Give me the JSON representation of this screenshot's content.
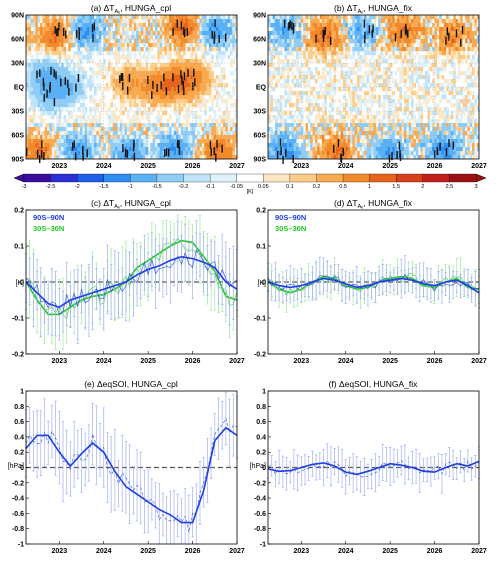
{
  "colorbar": {
    "levels": [
      "-3",
      "-2.5",
      "-2",
      "-1.5",
      "-1",
      "-0.5",
      "-0.2",
      "-0.1",
      "-0.05",
      "0.05",
      "0.1",
      "0.2",
      "0.5",
      "1",
      "1.5",
      "2",
      "2.5",
      "3"
    ],
    "colors": [
      "#3b0f9e",
      "#2b30d6",
      "#1f5fe8",
      "#2e8ef0",
      "#5ab0f5",
      "#8fcdf7",
      "#bfe3f8",
      "#dff1fb",
      "#ffffff",
      "#fde7c4",
      "#fccc88",
      "#f9a94f",
      "#f28a2b",
      "#e8641c",
      "#d8401a",
      "#c22019",
      "#9c1214"
    ],
    "unit": "[K]"
  },
  "chart_data": [
    {
      "type": "heatmap",
      "panel": "a",
      "title": "(a) ΔT_{Aₑ}, HUNGA_cpl",
      "x_tick_labels": [
        "2023",
        "2024",
        "2025",
        "2026",
        "2027"
      ],
      "y_tick_labels": [
        "90S",
        "60S",
        "30S",
        "EQ",
        "30N",
        "60N",
        "90N"
      ],
      "xlim": [
        2022.25,
        2027.0
      ],
      "ylim": [
        -90,
        90
      ],
      "features": [
        {
          "x": 2022.7,
          "lat": 15,
          "value": -0.6
        },
        {
          "x": 2022.8,
          "lat": -10,
          "value": -0.5
        },
        {
          "x": 2023.2,
          "lat": 0,
          "value": -0.5
        },
        {
          "x": 2024.6,
          "lat": 5,
          "value": 0.5
        },
        {
          "x": 2025.2,
          "lat": 0,
          "value": 0.6
        },
        {
          "x": 2025.6,
          "lat": 5,
          "value": 0.9
        },
        {
          "x": 2026.0,
          "lat": 10,
          "value": 0.7
        },
        {
          "x": 2022.9,
          "lat": 65,
          "value": 1.0
        },
        {
          "x": 2023.6,
          "lat": 70,
          "value": -1.0
        },
        {
          "x": 2025.8,
          "lat": 75,
          "value": 1.2
        },
        {
          "x": 2026.5,
          "lat": 70,
          "value": -1.0
        },
        {
          "x": 2022.5,
          "lat": -80,
          "value": 1.0
        },
        {
          "x": 2023.4,
          "lat": -80,
          "value": -1.0
        },
        {
          "x": 2024.6,
          "lat": -82,
          "value": -1.0
        },
        {
          "x": 2025.6,
          "lat": -78,
          "value": -1.0
        },
        {
          "x": 2026.6,
          "lat": -80,
          "value": 1.0
        }
      ]
    },
    {
      "type": "heatmap",
      "panel": "b",
      "title": "(b) ΔT_{Aₑ}, HUNGA_fix",
      "x_tick_labels": [
        "2023",
        "2024",
        "2025",
        "2026",
        "2027"
      ],
      "y_tick_labels": [
        "90S",
        "60S",
        "30S",
        "EQ",
        "30N",
        "60N",
        "90N"
      ],
      "xlim": [
        2022.25,
        2027.0
      ],
      "ylim": [
        -90,
        90
      ],
      "features": [
        {
          "x": 2022.6,
          "lat": 70,
          "value": -0.8
        },
        {
          "x": 2023.5,
          "lat": 65,
          "value": 1.0
        },
        {
          "x": 2024.4,
          "lat": 70,
          "value": -0.8
        },
        {
          "x": 2025.3,
          "lat": 70,
          "value": 1.0
        },
        {
          "x": 2026.4,
          "lat": 65,
          "value": 0.8
        },
        {
          "x": 2022.6,
          "lat": -80,
          "value": -1.2
        },
        {
          "x": 2023.8,
          "lat": -80,
          "value": 1.0
        },
        {
          "x": 2025.0,
          "lat": -82,
          "value": -1.0
        },
        {
          "x": 2026.2,
          "lat": -80,
          "value": -1.2
        }
      ]
    },
    {
      "type": "line",
      "panel": "c",
      "title": "(c) ΔT_{Aₑ}, HUNGA_cpl",
      "ylabel": "[K]",
      "x_tick_labels": [
        "2023",
        "2024",
        "2025",
        "2026",
        "2027"
      ],
      "y_tick_labels": [
        "-0.2",
        "-0.1",
        "0",
        "0.1",
        "0.2"
      ],
      "xlim": [
        2022.25,
        2027.0
      ],
      "ylim": [
        -0.2,
        0.2
      ],
      "x": [
        2022.25,
        2022.5,
        2022.75,
        2023.0,
        2023.25,
        2023.5,
        2023.75,
        2024.0,
        2024.25,
        2024.5,
        2024.75,
        2025.0,
        2025.25,
        2025.5,
        2025.75,
        2026.0,
        2026.25,
        2026.5,
        2026.75,
        2027.0
      ],
      "series": [
        {
          "name": "90S–90N",
          "color": "#1f3fe0",
          "values": [
            0.0,
            -0.03,
            -0.06,
            -0.07,
            -0.05,
            -0.04,
            -0.03,
            -0.02,
            -0.01,
            0.0,
            0.02,
            0.035,
            0.045,
            0.06,
            0.07,
            0.065,
            0.055,
            0.04,
            0.0,
            -0.02
          ]
        },
        {
          "name": "30S–30N",
          "color": "#1fc81f",
          "values": [
            0.0,
            -0.05,
            -0.09,
            -0.09,
            -0.07,
            -0.05,
            -0.04,
            -0.035,
            -0.02,
            0.0,
            0.04,
            0.06,
            0.08,
            0.1,
            0.115,
            0.11,
            0.07,
            0.03,
            -0.04,
            -0.05
          ]
        }
      ],
      "legend_placement": "top-left"
    },
    {
      "type": "line",
      "panel": "d",
      "title": "(d) ΔT_{Aₑ}, HUNGA_fix",
      "ylabel": "[K]",
      "x_tick_labels": [
        "2023",
        "2024",
        "2025",
        "2026",
        "2027"
      ],
      "y_tick_labels": [
        "-0.2",
        "-0.1",
        "0",
        "0.1",
        "0.2"
      ],
      "xlim": [
        2022.25,
        2027.0
      ],
      "ylim": [
        -0.2,
        0.2
      ],
      "x": [
        2022.25,
        2022.5,
        2022.75,
        2023.0,
        2023.25,
        2023.5,
        2023.75,
        2024.0,
        2024.25,
        2024.5,
        2024.75,
        2025.0,
        2025.25,
        2025.5,
        2025.75,
        2026.0,
        2026.25,
        2026.5,
        2026.75,
        2027.0
      ],
      "series": [
        {
          "name": "90S–90N",
          "color": "#1f3fe0",
          "values": [
            0.0,
            -0.01,
            -0.015,
            -0.01,
            0.0,
            0.01,
            0.005,
            -0.005,
            -0.015,
            -0.01,
            0.0,
            0.005,
            0.01,
            0.005,
            -0.005,
            -0.01,
            0.0,
            0.005,
            -0.01,
            -0.03
          ]
        },
        {
          "name": "30S–30N",
          "color": "#1fc81f",
          "values": [
            0.0,
            -0.02,
            -0.03,
            -0.02,
            0.0,
            0.015,
            0.01,
            -0.01,
            -0.02,
            -0.015,
            0.0,
            0.01,
            0.015,
            0.01,
            -0.01,
            -0.015,
            0.0,
            0.01,
            -0.015,
            -0.02
          ]
        }
      ],
      "legend_placement": "top-left"
    },
    {
      "type": "line",
      "panel": "e",
      "title": "(e) ΔeqSOI, HUNGA_cpl",
      "ylabel": "[hPa]",
      "x_tick_labels": [
        "2023",
        "2024",
        "2025",
        "2026",
        "2027"
      ],
      "y_tick_labels": [
        "-1",
        "-0.8",
        "-0.6",
        "-0.4",
        "-0.2",
        "0",
        "0.2",
        "0.4",
        "0.6",
        "0.8",
        "1"
      ],
      "xlim": [
        2022.25,
        2027.0
      ],
      "ylim": [
        -1,
        1
      ],
      "x": [
        2022.25,
        2022.5,
        2022.75,
        2023.0,
        2023.25,
        2023.5,
        2023.75,
        2024.0,
        2024.25,
        2024.5,
        2024.75,
        2025.0,
        2025.25,
        2025.5,
        2025.75,
        2026.0,
        2026.25,
        2026.5,
        2026.75,
        2027.0
      ],
      "series": [
        {
          "name": "",
          "color": "#1f3fe0",
          "values": [
            0.25,
            0.42,
            0.42,
            0.2,
            0.02,
            0.18,
            0.32,
            0.2,
            -0.05,
            -0.25,
            -0.35,
            -0.45,
            -0.55,
            -0.62,
            -0.72,
            -0.72,
            -0.3,
            0.35,
            0.52,
            0.42
          ]
        }
      ]
    },
    {
      "type": "line",
      "panel": "f",
      "title": "(f) ΔeqSOI, HUNGA_fix",
      "ylabel": "[hPa]",
      "x_tick_labels": [
        "2023",
        "2024",
        "2025",
        "2026",
        "2027"
      ],
      "y_tick_labels": [
        "-1",
        "-0.8",
        "-0.6",
        "-0.4",
        "-0.2",
        "0",
        "0.2",
        "0.4",
        "0.6",
        "0.8",
        "1"
      ],
      "xlim": [
        2022.25,
        2027.0
      ],
      "ylim": [
        -1,
        1
      ],
      "x": [
        2022.25,
        2022.5,
        2022.75,
        2023.0,
        2023.25,
        2023.5,
        2023.75,
        2024.0,
        2024.25,
        2024.5,
        2024.75,
        2025.0,
        2025.25,
        2025.5,
        2025.75,
        2026.0,
        2026.25,
        2026.5,
        2026.75,
        2027.0
      ],
      "series": [
        {
          "name": "",
          "color": "#1f3fe0",
          "values": [
            -0.02,
            -0.05,
            -0.04,
            0.0,
            0.04,
            0.06,
            0.02,
            -0.06,
            -0.09,
            -0.05,
            0.0,
            0.05,
            0.03,
            0.0,
            -0.05,
            -0.06,
            0.0,
            0.05,
            0.02,
            0.08
          ]
        }
      ]
    }
  ]
}
